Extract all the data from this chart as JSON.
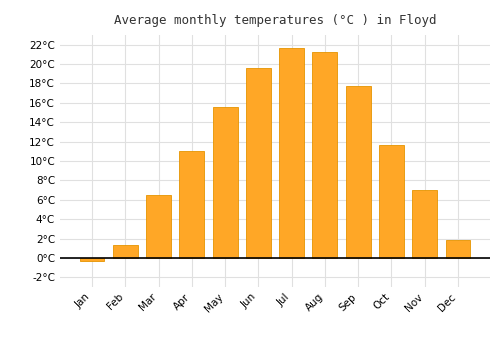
{
  "title": "Average monthly temperatures (°C ) in Floyd",
  "months": [
    "Jan",
    "Feb",
    "Mar",
    "Apr",
    "May",
    "Jun",
    "Jul",
    "Aug",
    "Sep",
    "Oct",
    "Nov",
    "Dec"
  ],
  "values": [
    -0.3,
    1.3,
    6.5,
    11.0,
    15.6,
    19.6,
    21.7,
    21.2,
    17.7,
    11.6,
    7.0,
    1.8
  ],
  "bar_color": "#FFA726",
  "bar_edge_color": "#E59400",
  "ylim": [
    -3,
    23
  ],
  "yticks": [
    -2,
    0,
    2,
    4,
    6,
    8,
    10,
    12,
    14,
    16,
    18,
    20,
    22
  ],
  "background_color": "#ffffff",
  "plot_bg_color": "#ffffff",
  "grid_color": "#e0e0e0",
  "title_fontsize": 9,
  "tick_fontsize": 7.5,
  "bar_width": 0.75
}
